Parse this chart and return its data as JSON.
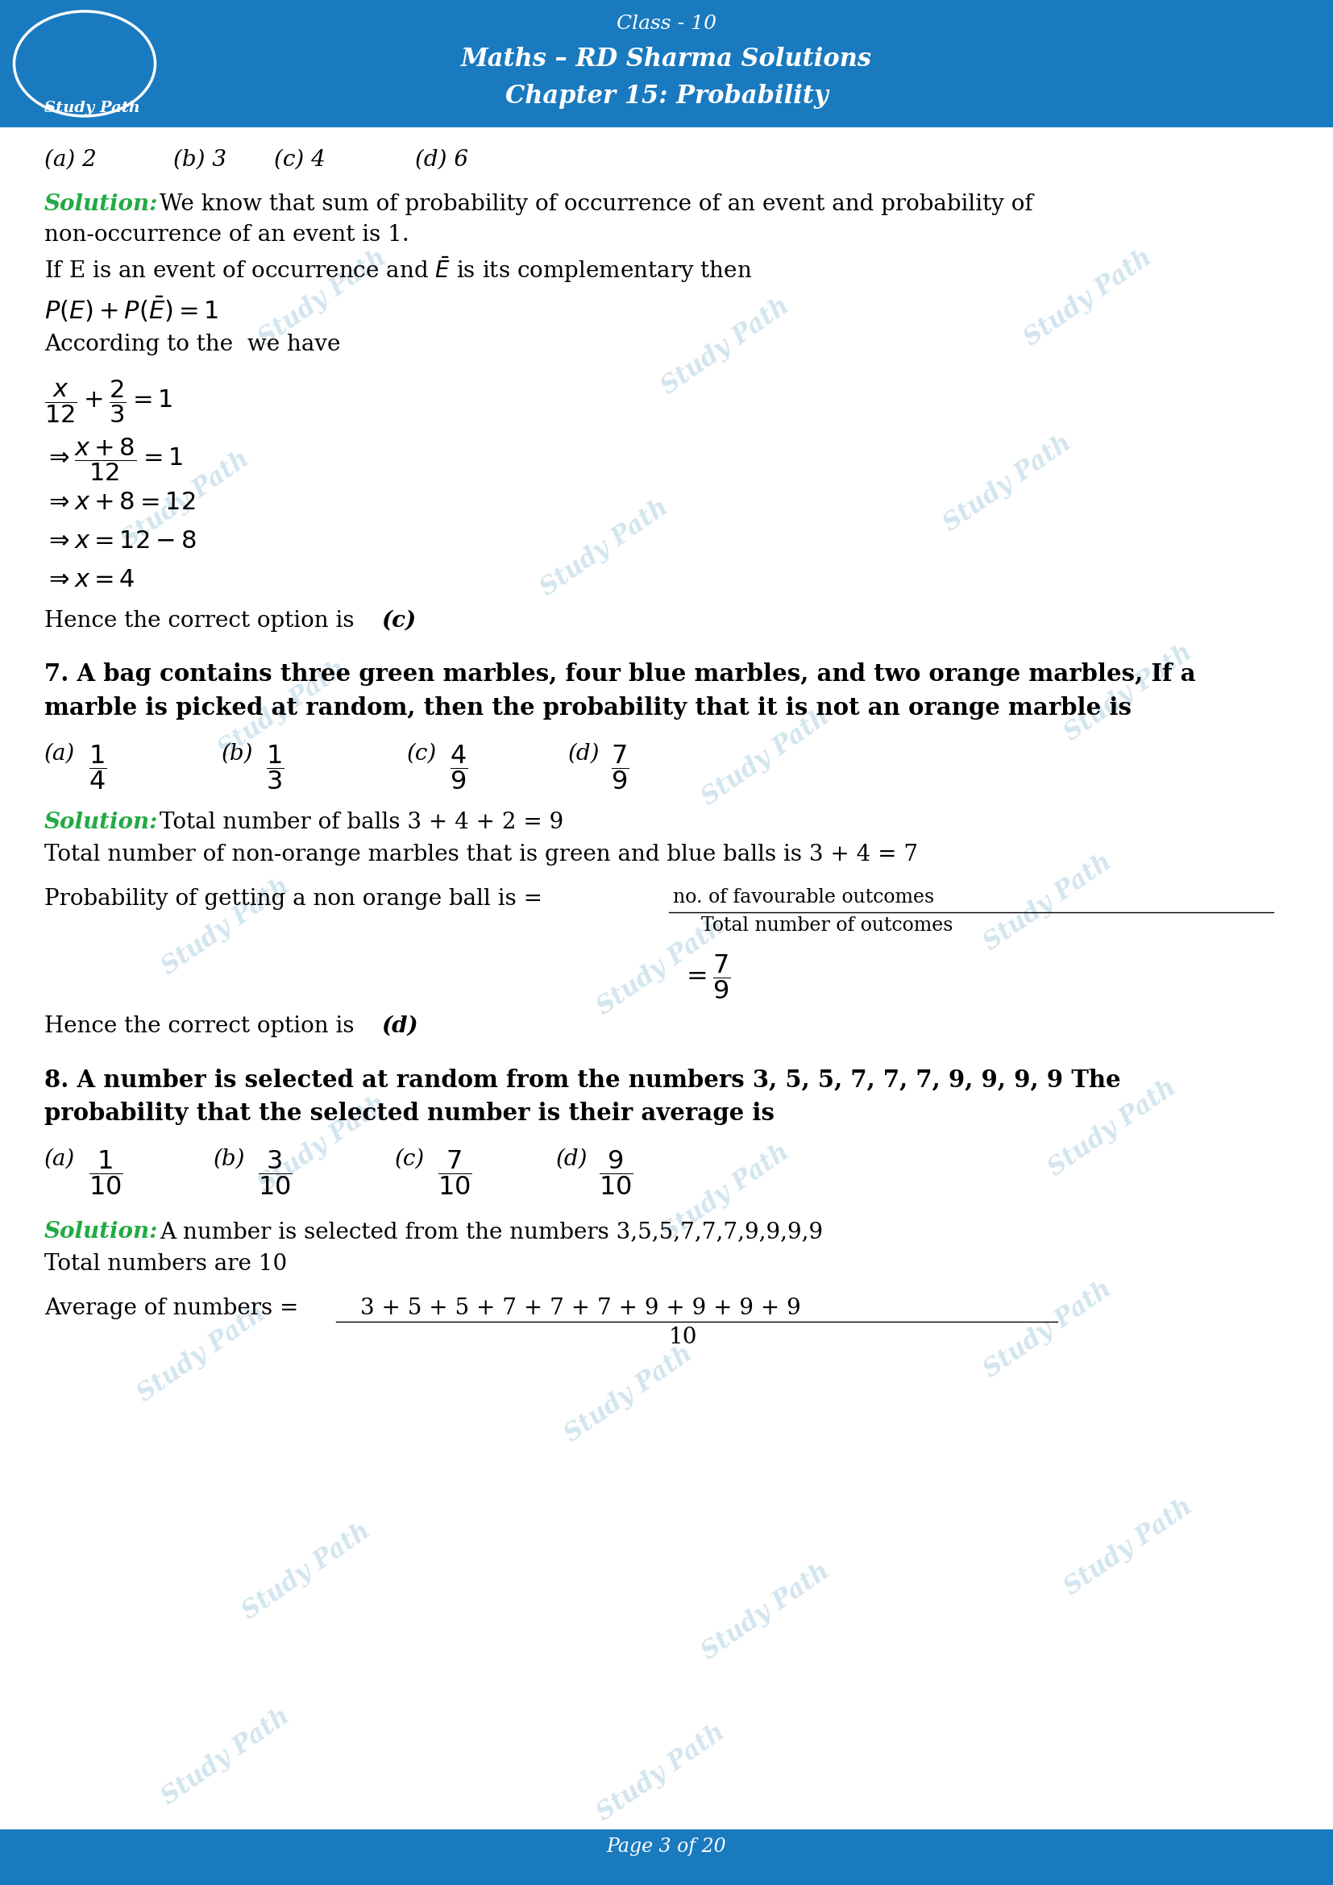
{
  "header_bg": "#1a7abf",
  "body_bg": "#ffffff",
  "solution_color": "#22aa44",
  "header_line1": "Class - 10",
  "header_line2": "Maths – RD Sharma Solutions",
  "header_line3": "Chapter 15: Probability",
  "footer_text": "Page 3 of 20",
  "watermark_text": "Study Path",
  "watermark_color": "#a8cce0"
}
